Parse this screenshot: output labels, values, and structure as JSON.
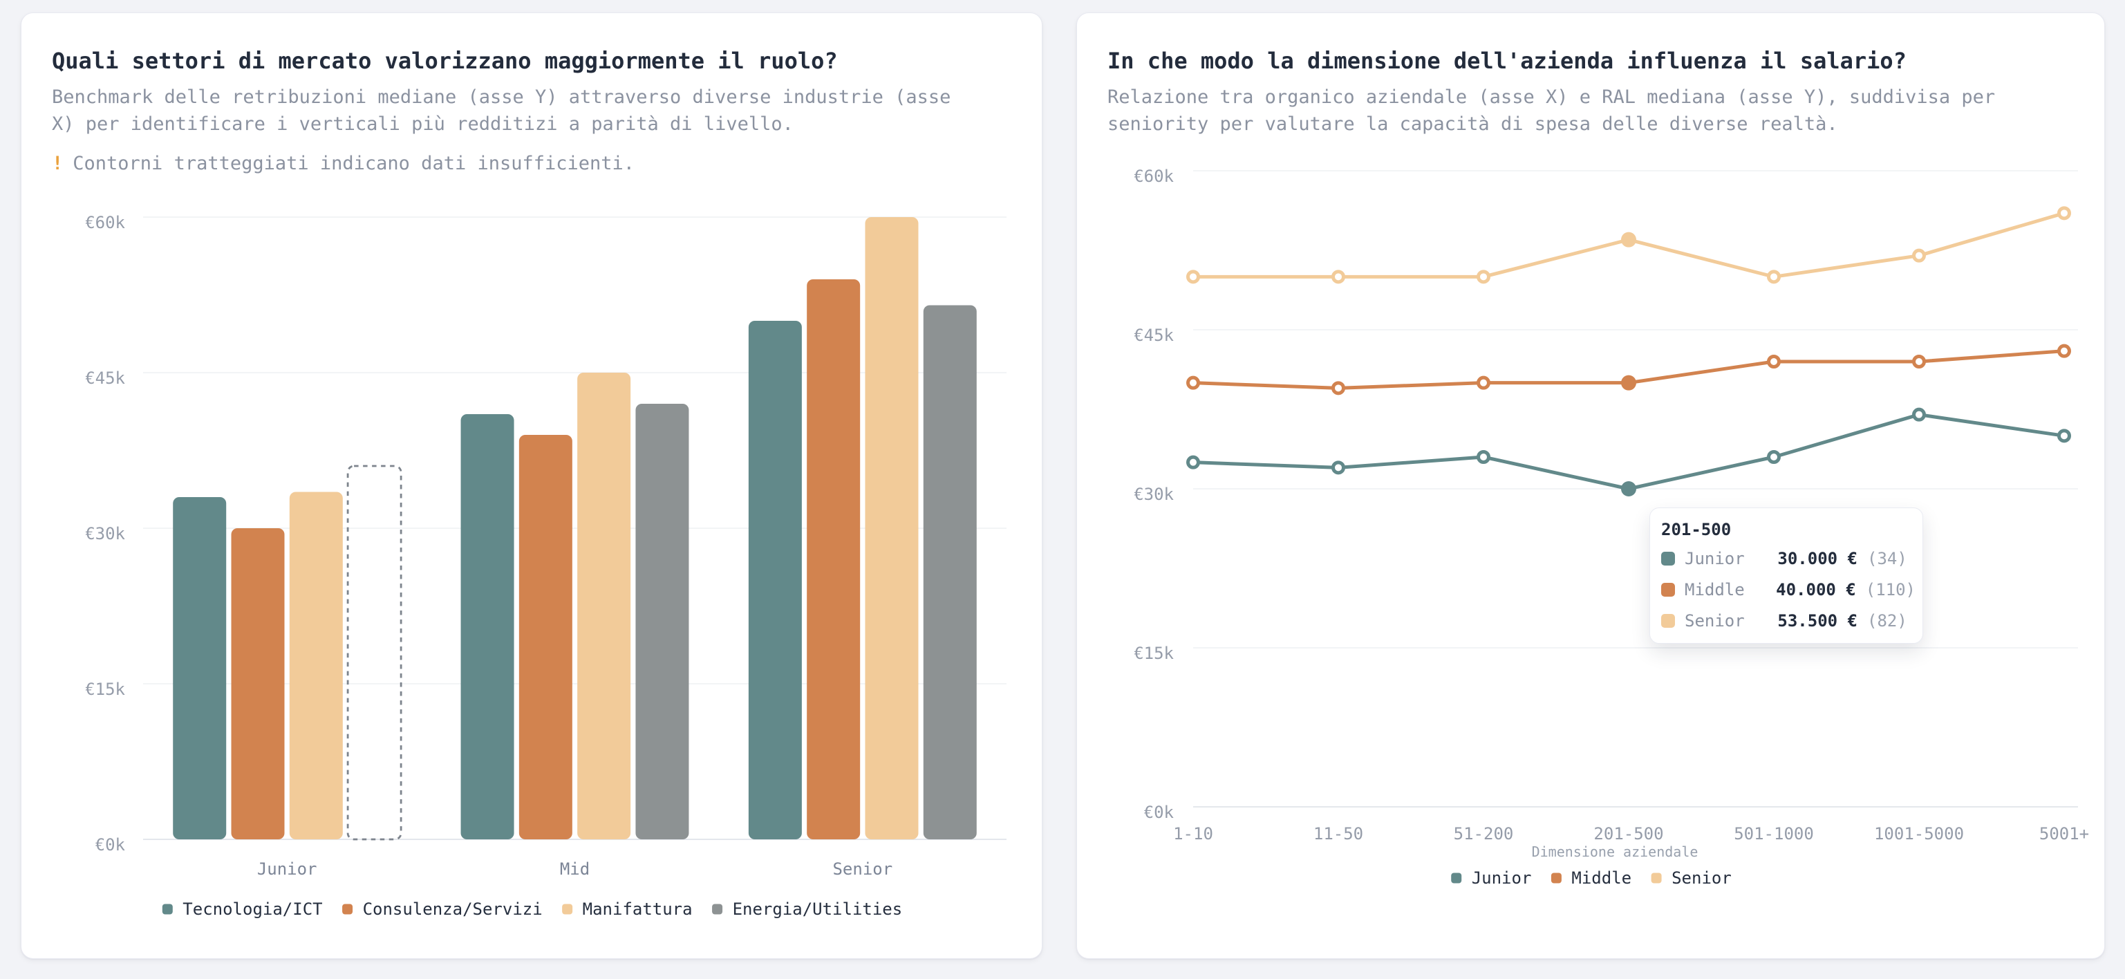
{
  "palette": {
    "teal": "#62898a",
    "orange": "#d2834f",
    "tan": "#f2cb99",
    "gray": "#8d9293",
    "amber": "#eaa23e",
    "title_text": "#232c3c",
    "muted_text": "#8b92a0",
    "grid": "#eef0f3"
  },
  "cards": [
    {
      "title": "Quali settori di mercato valorizzano maggiormente il ruolo?",
      "subtitle": "Benchmark delle retribuzioni mediane (asse Y) attraverso diverse industrie (asse X) per identificare i verticali più redditizi a parità di livello.",
      "note_icon": "!",
      "note": "Contorni tratteggiati indicano dati insufficienti."
    },
    {
      "title": "In che modo la dimensione dell'azienda influenza il salario?",
      "subtitle": "Relazione tra organico aziendale (asse X) e RAL mediana (asse Y), suddivisa per seniority per valutare la capacità di spesa delle diverse realtà."
    }
  ],
  "chart_data": [
    {
      "type": "bar",
      "categories": [
        "Junior",
        "Mid",
        "Senior"
      ],
      "series": [
        {
          "name": "Tecnologia/ICT",
          "color": "#62898a",
          "values": [
            33000,
            41000,
            50000
          ]
        },
        {
          "name": "Consulenza/Servizi",
          "color": "#d2834f",
          "values": [
            30000,
            39000,
            54000
          ]
        },
        {
          "name": "Manifattura",
          "color": "#f2cb99",
          "values": [
            33500,
            45000,
            60000
          ]
        },
        {
          "name": "Energia/Utilities",
          "color": "#8d9293",
          "values": [
            36000,
            42000,
            51500
          ],
          "dashed_categories": [
            "Junior"
          ]
        }
      ],
      "ylim": [
        0,
        60000
      ],
      "yticks": [
        {
          "v": 0,
          "label": "€0k"
        },
        {
          "v": 15000,
          "label": "€15k"
        },
        {
          "v": 30000,
          "label": "€30k"
        },
        {
          "v": 45000,
          "label": "€45k"
        },
        {
          "v": 60000,
          "label": "€60k"
        }
      ],
      "legend_position": "bottom"
    },
    {
      "type": "line",
      "x": [
        "1-10",
        "11-50",
        "51-200",
        "201-500",
        "501-1000",
        "1001-5000",
        "5001+"
      ],
      "xlabel": "Dimensione aziendale",
      "series": [
        {
          "name": "Junior",
          "color": "#62898a",
          "values": [
            32500,
            32000,
            33000,
            30000,
            33000,
            37000,
            35000
          ]
        },
        {
          "name": "Middle",
          "color": "#d2834f",
          "values": [
            40000,
            39500,
            40000,
            40000,
            42000,
            42000,
            43000
          ]
        },
        {
          "name": "Senior",
          "color": "#f2cb99",
          "values": [
            50000,
            50000,
            50000,
            53500,
            50000,
            52000,
            56000
          ]
        }
      ],
      "active_index": 3,
      "ylim": [
        0,
        60000
      ],
      "yticks": [
        {
          "v": 0,
          "label": "€0k"
        },
        {
          "v": 15000,
          "label": "€15k"
        },
        {
          "v": 30000,
          "label": "€30k"
        },
        {
          "v": 45000,
          "label": "€45k"
        },
        {
          "v": 60000,
          "label": "€60k"
        }
      ],
      "legend_position": "bottom",
      "tooltip": {
        "title": "201-500",
        "rows": [
          {
            "label": "Junior",
            "value": "30.000 €",
            "count": "(34)"
          },
          {
            "label": "Middle",
            "value": "40.000 €",
            "count": "(110)"
          },
          {
            "label": "Senior",
            "value": "53.500 €",
            "count": "(82)"
          }
        ]
      }
    }
  ]
}
